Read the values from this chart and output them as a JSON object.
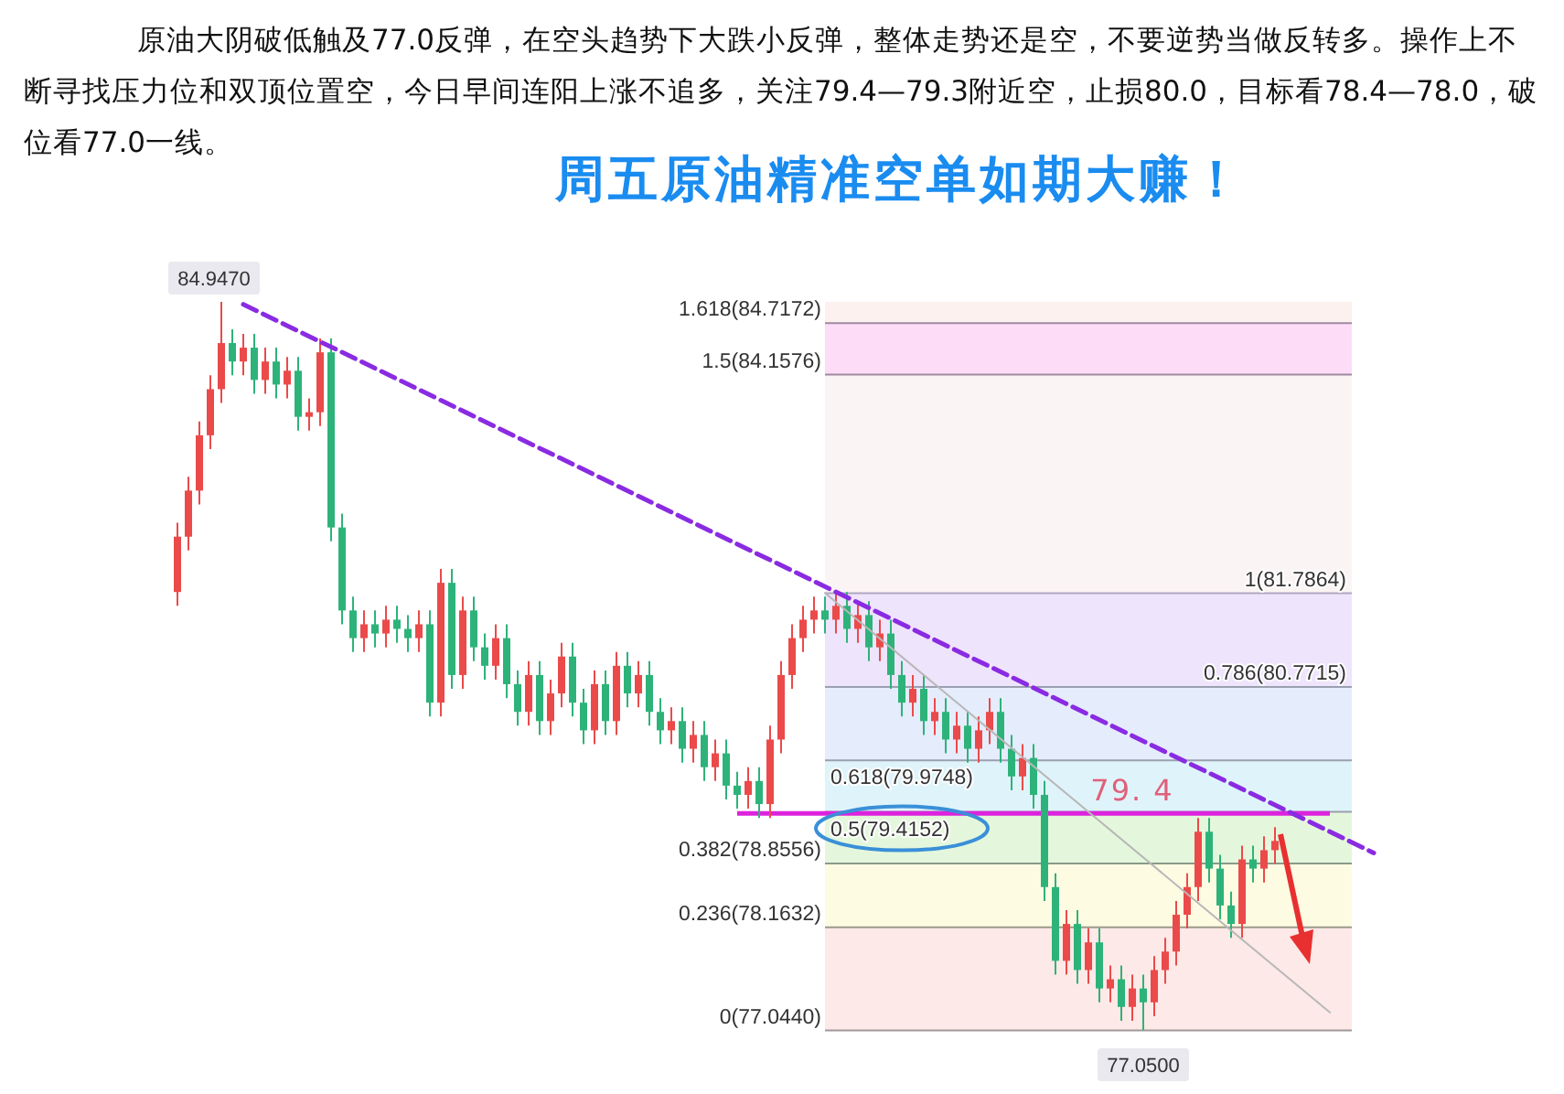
{
  "chart_data": {
    "type": "candlestick",
    "title": "周五原油精准空单如期大赚！",
    "subtitle": "原油大阴破低触及77.0反弹，在空头趋势下大跌小反弹，整体走势还是空，不要逆势当做反转多。操作上不断寻找压力位和双顶位置空，今日早间连阳上涨不追多，关注79.4—79.3附近空，止损80.0，目标看78.4—78.0，破位看77.0一线。",
    "categories": [
      null,
      null,
      null,
      null,
      null,
      null,
      null,
      null,
      null,
      null,
      null,
      null,
      null,
      null,
      null,
      null,
      null,
      null,
      null,
      null,
      null,
      null,
      null,
      null,
      null,
      null,
      null,
      null,
      null,
      null,
      null,
      null,
      null,
      null,
      null,
      null,
      null,
      null,
      null,
      null,
      null,
      null,
      null,
      null,
      null,
      null,
      null,
      null,
      null,
      null,
      null,
      null,
      null,
      null,
      null,
      null,
      null,
      null,
      null,
      null,
      null,
      null,
      null,
      null,
      null,
      null,
      null,
      null,
      null,
      null,
      null,
      null,
      null,
      null,
      null,
      null,
      null,
      null,
      null,
      null,
      null,
      null,
      null,
      null,
      null,
      null,
      null,
      null,
      null,
      null,
      null,
      null,
      null,
      null,
      null,
      null,
      null,
      null,
      null,
      null,
      null,
      null,
      null,
      null,
      null,
      null,
      null,
      null,
      null,
      null
    ],
    "ohlc": [
      [
        81.8,
        82.55,
        81.65,
        82.4
      ],
      [
        82.4,
        83.05,
        82.25,
        82.9
      ],
      [
        82.9,
        83.65,
        82.75,
        83.5
      ],
      [
        83.5,
        84.15,
        83.35,
        84.0
      ],
      [
        84.0,
        84.947,
        83.85,
        84.5
      ],
      [
        84.5,
        84.65,
        84.15,
        84.3
      ],
      [
        84.3,
        84.6,
        84.15,
        84.45
      ],
      [
        84.45,
        84.6,
        83.95,
        84.1
      ],
      [
        84.1,
        84.45,
        83.95,
        84.3
      ],
      [
        84.3,
        84.45,
        83.9,
        84.05
      ],
      [
        84.05,
        84.35,
        83.9,
        84.2
      ],
      [
        84.2,
        84.35,
        83.55,
        83.7
      ],
      [
        83.7,
        83.9,
        83.55,
        83.75
      ],
      [
        83.75,
        84.55,
        83.6,
        84.4
      ],
      [
        84.4,
        84.55,
        82.35,
        82.5
      ],
      [
        82.5,
        82.65,
        81.45,
        81.6
      ],
      [
        81.6,
        81.75,
        81.15,
        81.3
      ],
      [
        81.3,
        81.6,
        81.15,
        81.45
      ],
      [
        81.45,
        81.6,
        81.2,
        81.35
      ],
      [
        81.35,
        81.65,
        81.2,
        81.5
      ],
      [
        81.5,
        81.65,
        81.25,
        81.4
      ],
      [
        81.4,
        81.55,
        81.15,
        81.3
      ],
      [
        81.3,
        81.6,
        81.15,
        81.45
      ],
      [
        81.45,
        81.6,
        80.45,
        80.6
      ],
      [
        80.6,
        82.05,
        80.45,
        81.9
      ],
      [
        81.9,
        82.05,
        80.75,
        80.9
      ],
      [
        80.9,
        81.75,
        80.75,
        81.6
      ],
      [
        81.6,
        81.75,
        81.05,
        81.2
      ],
      [
        81.2,
        81.35,
        80.85,
        81.0
      ],
      [
        81.0,
        81.45,
        80.85,
        81.3
      ],
      [
        81.3,
        81.45,
        80.65,
        80.8
      ],
      [
        80.8,
        80.95,
        80.35,
        80.5
      ],
      [
        80.5,
        81.05,
        80.35,
        80.9
      ],
      [
        80.9,
        81.05,
        80.25,
        80.4
      ],
      [
        80.4,
        80.85,
        80.25,
        80.7
      ],
      [
        80.7,
        81.25,
        80.55,
        81.1
      ],
      [
        81.1,
        81.25,
        80.45,
        80.6
      ],
      [
        80.6,
        80.75,
        80.15,
        80.3
      ],
      [
        80.3,
        80.95,
        80.15,
        80.8
      ],
      [
        80.8,
        80.95,
        80.25,
        80.4
      ],
      [
        80.4,
        81.15,
        80.25,
        81.0
      ],
      [
        81.0,
        81.15,
        80.55,
        80.7
      ],
      [
        80.7,
        81.05,
        80.55,
        80.9
      ],
      [
        80.9,
        81.05,
        80.35,
        80.5
      ],
      [
        80.5,
        80.65,
        80.15,
        80.3
      ],
      [
        80.3,
        80.55,
        80.15,
        80.4
      ],
      [
        80.4,
        80.55,
        79.95,
        80.1
      ],
      [
        80.1,
        80.4,
        79.95,
        80.25
      ],
      [
        80.25,
        80.4,
        79.75,
        79.9
      ],
      [
        79.9,
        80.2,
        79.75,
        80.05
      ],
      [
        80.05,
        80.2,
        79.55,
        79.7
      ],
      [
        79.7,
        79.85,
        79.45,
        79.6
      ],
      [
        79.6,
        79.9,
        79.45,
        79.75
      ],
      [
        79.75,
        79.9,
        79.35,
        79.5
      ],
      [
        79.5,
        80.35,
        79.35,
        80.2
      ],
      [
        80.2,
        81.05,
        80.05,
        80.9
      ],
      [
        80.9,
        81.45,
        80.75,
        81.3
      ],
      [
        81.3,
        81.65,
        81.15,
        81.5
      ],
      [
        81.5,
        81.75,
        81.35,
        81.6
      ],
      [
        81.6,
        81.75,
        81.35,
        81.5
      ],
      [
        81.5,
        81.8,
        81.35,
        81.65
      ],
      [
        81.65,
        81.8,
        81.25,
        81.4
      ],
      [
        81.4,
        81.7,
        81.25,
        81.55
      ],
      [
        81.55,
        81.7,
        81.05,
        81.2
      ],
      [
        81.2,
        81.5,
        81.05,
        81.35
      ],
      [
        81.35,
        81.5,
        80.75,
        80.9
      ],
      [
        80.9,
        81.05,
        80.45,
        80.6
      ],
      [
        80.6,
        80.9,
        80.45,
        80.75
      ],
      [
        80.75,
        80.9,
        80.25,
        80.4
      ],
      [
        80.4,
        80.65,
        80.25,
        80.5
      ],
      [
        80.5,
        80.65,
        80.05,
        80.2
      ],
      [
        80.2,
        80.5,
        80.05,
        80.35
      ],
      [
        80.35,
        80.5,
        79.95,
        80.1
      ],
      [
        80.1,
        80.45,
        79.95,
        80.3
      ],
      [
        80.3,
        80.65,
        80.15,
        80.5
      ],
      [
        80.5,
        80.65,
        79.95,
        80.1
      ],
      [
        80.1,
        80.25,
        79.65,
        79.8
      ],
      [
        79.8,
        80.15,
        79.65,
        80.0
      ],
      [
        80.0,
        80.15,
        79.45,
        79.6
      ],
      [
        79.6,
        79.75,
        78.45,
        78.6
      ],
      [
        78.6,
        78.75,
        77.65,
        77.8
      ],
      [
        77.8,
        78.35,
        77.65,
        78.2
      ],
      [
        78.2,
        78.35,
        77.55,
        77.7
      ],
      [
        77.7,
        78.15,
        77.55,
        78.0
      ],
      [
        78.0,
        78.15,
        77.35,
        77.5
      ],
      [
        77.5,
        77.75,
        77.35,
        77.6
      ],
      [
        77.6,
        77.75,
        77.15,
        77.3
      ],
      [
        77.3,
        77.65,
        77.15,
        77.5
      ],
      [
        77.5,
        77.65,
        77.05,
        77.35
      ],
      [
        77.35,
        77.85,
        77.2,
        77.7
      ],
      [
        77.7,
        78.05,
        77.55,
        77.9
      ],
      [
        77.9,
        78.45,
        77.75,
        78.3
      ],
      [
        78.3,
        78.75,
        78.15,
        78.6
      ],
      [
        78.6,
        79.35,
        78.45,
        79.2
      ],
      [
        79.2,
        79.35,
        78.65,
        78.8
      ],
      [
        78.8,
        78.95,
        78.25,
        78.4
      ],
      [
        78.4,
        78.55,
        78.05,
        78.2
      ],
      [
        78.2,
        79.05,
        78.05,
        78.9
      ],
      [
        78.9,
        79.05,
        78.65,
        78.8
      ],
      [
        78.8,
        79.15,
        78.65,
        79.0
      ],
      [
        79.0,
        79.25,
        78.85,
        79.1
      ],
      null,
      null,
      null,
      null,
      null,
      null,
      null,
      null,
      null
    ],
    "colors": [
      "#eb4a4a",
      "#eb4a4a",
      "#eb4a4a",
      "#eb4a4a",
      "#eb4a4a",
      "#2db37a",
      "#eb4a4a",
      "#2db37a",
      "#eb4a4a",
      "#2db37a",
      "#eb4a4a",
      "#2db37a",
      "#eb4a4a",
      "#eb4a4a",
      "#2db37a",
      "#2db37a",
      "#2db37a",
      "#eb4a4a",
      "#2db37a",
      "#eb4a4a",
      "#2db37a",
      "#2db37a",
      "#eb4a4a",
      "#2db37a",
      "#eb4a4a",
      "#2db37a",
      "#eb4a4a",
      "#2db37a",
      "#2db37a",
      "#eb4a4a",
      "#2db37a",
      "#2db37a",
      "#eb4a4a",
      "#2db37a",
      "#eb4a4a",
      "#eb4a4a",
      "#2db37a",
      "#2db37a",
      "#eb4a4a",
      "#2db37a",
      "#eb4a4a",
      "#2db37a",
      "#eb4a4a",
      "#2db37a",
      "#2db37a",
      "#eb4a4a",
      "#2db37a",
      "#eb4a4a",
      "#2db37a",
      "#eb4a4a",
      "#2db37a",
      "#2db37a",
      "#eb4a4a",
      "#2db37a",
      "#eb4a4a",
      "#eb4a4a",
      "#eb4a4a",
      "#eb4a4a",
      "#eb4a4a",
      "#2db37a",
      "#eb4a4a",
      "#2db37a",
      "#eb4a4a",
      "#2db37a",
      "#eb4a4a",
      "#2db37a",
      "#2db37a",
      "#eb4a4a",
      "#2db37a",
      "#eb4a4a",
      "#2db37a",
      "#eb4a4a",
      "#2db37a",
      "#eb4a4a",
      "#eb4a4a",
      "#2db37a",
      "#2db37a",
      "#eb4a4a",
      "#2db37a",
      "#2db37a",
      "#2db37a",
      "#eb4a4a",
      "#2db37a",
      "#eb4a4a",
      "#2db37a",
      "#eb4a4a",
      "#2db37a",
      "#eb4a4a",
      "#2db37a",
      "#eb4a4a",
      "#eb4a4a",
      "#eb4a4a",
      "#eb4a4a",
      "#eb4a4a",
      "#2db37a",
      "#2db37a",
      "#2db37a",
      "#eb4a4a",
      "#2db37a",
      "#eb4a4a",
      "#eb4a4a",
      null,
      null,
      null,
      null,
      null,
      null,
      null,
      null,
      null
    ],
    "tick_labels": false,
    "series": [
      {
        "type": "line",
        "color": "#8a2be2",
        "line_style": "dashed",
        "values": [
          null,
          null,
          null,
          null,
          null,
          null,
          84.92,
          null,
          null,
          null,
          null,
          null,
          null,
          null,
          null,
          null,
          null,
          null,
          null,
          null,
          null,
          null,
          null,
          null,
          null,
          null,
          null,
          null,
          null,
          null,
          null,
          null,
          null,
          null,
          null,
          null,
          null,
          null,
          null,
          null,
          null,
          null,
          null,
          null,
          null,
          null,
          null,
          null,
          null,
          null,
          null,
          null,
          null,
          null,
          null,
          null,
          null,
          null,
          null,
          null,
          null,
          null,
          null,
          null,
          null,
          null,
          null,
          null,
          null,
          null,
          null,
          null,
          null,
          null,
          null,
          null,
          null,
          null,
          null,
          null,
          null,
          null,
          null,
          null,
          null,
          null,
          null,
          null,
          null,
          null,
          null,
          null,
          null,
          null,
          null,
          null,
          null,
          null,
          null,
          null,
          null,
          null,
          null,
          null,
          null,
          null,
          null,
          null,
          null,
          78.97
        ]
      },
      {
        "type": "line",
        "color": "#b8b8b8",
        "values": [
          null,
          null,
          null,
          null,
          null,
          null,
          null,
          null,
          null,
          null,
          null,
          null,
          null,
          null,
          null,
          null,
          null,
          null,
          null,
          null,
          null,
          null,
          null,
          null,
          null,
          null,
          null,
          null,
          null,
          null,
          null,
          null,
          null,
          null,
          null,
          null,
          null,
          null,
          null,
          null,
          null,
          null,
          null,
          null,
          null,
          null,
          null,
          null,
          null,
          null,
          null,
          null,
          null,
          null,
          null,
          null,
          null,
          null,
          null,
          81.79,
          null,
          null,
          null,
          null,
          null,
          null,
          null,
          null,
          null,
          null,
          null,
          null,
          null,
          null,
          null,
          null,
          null,
          null,
          null,
          null,
          null,
          null,
          null,
          null,
          null,
          null,
          null,
          null,
          null,
          null,
          null,
          null,
          null,
          null,
          null,
          null,
          null,
          null,
          null,
          null,
          null,
          null,
          null,
          null,
          null,
          77.24,
          null,
          null,
          null,
          null
        ]
      }
    ],
    "ref_lines": [
      {
        "axis": "y",
        "value": 84.7172,
        "label": "1.618(84.7172)",
        "color": "#a08aa0"
      },
      {
        "axis": "y",
        "value": 84.1576,
        "label": "1.5(84.1576)",
        "color": "#a08aa0"
      },
      {
        "axis": "y",
        "value": 81.7864,
        "label": "1(81.7864)",
        "color": "#b0a8c0"
      },
      {
        "axis": "y",
        "value": 80.7715,
        "label": "0.786(80.7715)",
        "color": "#9aa0b0"
      },
      {
        "axis": "y",
        "value": 79.9748,
        "label": "0.618(79.9748)",
        "color": "#9aa0b0"
      },
      {
        "axis": "y",
        "value": 79.4152,
        "label": "0.5(79.4152)",
        "color": "#9aa0b0"
      },
      {
        "axis": "y",
        "value": 78.8556,
        "label": "0.382(78.8556)",
        "color": "#8a9a8a"
      },
      {
        "axis": "y",
        "value": 78.1632,
        "label": "0.236(78.1632)",
        "color": "#9a9a8a"
      },
      {
        "axis": "y",
        "value": 77.044,
        "label": "0(77.0440)",
        "color": "#a09a9a"
      },
      {
        "axis": "y",
        "value": 79.4,
        "label": "79. 4",
        "color": "#dd22dd"
      }
    ],
    "bands": [
      {
        "axis": "y",
        "from": 84.7172,
        "to": 84.947,
        "color": "#fcf1ee"
      },
      {
        "axis": "y",
        "from": 84.1576,
        "to": 84.7172,
        "color": "#fddcf8"
      },
      {
        "axis": "y",
        "from": 81.7864,
        "to": 84.1576,
        "color": "#fbf4f4"
      },
      {
        "axis": "y",
        "from": 80.7715,
        "to": 81.7864,
        "color": "#eee4fc"
      },
      {
        "axis": "y",
        "from": 79.9748,
        "to": 80.7715,
        "color": "#e5ecfc"
      },
      {
        "axis": "y",
        "from": 79.4152,
        "to": 79.9748,
        "color": "#dff4fa"
      },
      {
        "axis": "y",
        "from": 78.8556,
        "to": 79.4152,
        "color": "#e4f7dc"
      },
      {
        "axis": "y",
        "from": 78.1632,
        "to": 78.8556,
        "color": "#fdfbe2"
      },
      {
        "axis": "y",
        "from": 77.044,
        "to": 78.1632,
        "color": "#fde9e7"
      }
    ],
    "annotations": [
      {
        "text": "84.9470",
        "y": 84.947
      },
      {
        "text": "77.0500",
        "y": 77.05
      }
    ]
  }
}
